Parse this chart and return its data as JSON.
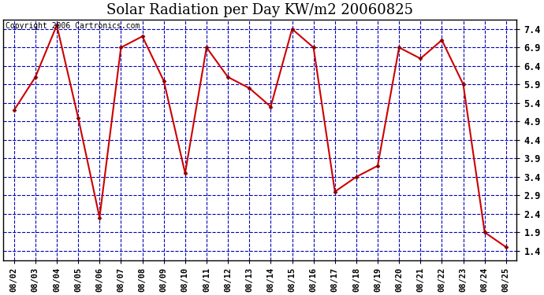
{
  "title": "Solar Radiation per Day KW/m2 20060825",
  "copyright": "Copyright 2006 Cartronics.com",
  "dates": [
    "08/02",
    "08/03",
    "08/04",
    "08/05",
    "08/06",
    "08/07",
    "08/08",
    "08/09",
    "08/10",
    "08/11",
    "08/12",
    "08/13",
    "08/14",
    "08/15",
    "08/16",
    "08/17",
    "08/18",
    "08/19",
    "08/20",
    "08/21",
    "08/22",
    "08/23",
    "08/24",
    "08/25"
  ],
  "values": [
    5.2,
    6.1,
    7.5,
    5.0,
    2.3,
    6.9,
    7.2,
    6.0,
    3.5,
    6.9,
    6.1,
    5.8,
    5.3,
    7.4,
    6.9,
    3.0,
    3.4,
    3.7,
    6.9,
    6.6,
    7.1,
    5.9,
    1.9,
    1.5
  ],
  "line_color": "#cc0000",
  "marker_color": "#880000",
  "bg_color": "#ffffff",
  "plot_bg_color": "#ffffff",
  "grid_color_h": "#0000bb",
  "grid_color_v": "#0000bb",
  "axis_color": "#000000",
  "ylim_min": 1.15,
  "ylim_max": 7.65,
  "yticks": [
    1.4,
    1.9,
    2.4,
    2.9,
    3.4,
    3.9,
    4.4,
    4.9,
    5.4,
    5.9,
    6.4,
    6.9,
    7.4
  ],
  "title_fontsize": 13,
  "copyright_fontsize": 7,
  "tick_fontsize": 7.5,
  "ytick_fontsize": 8.5
}
